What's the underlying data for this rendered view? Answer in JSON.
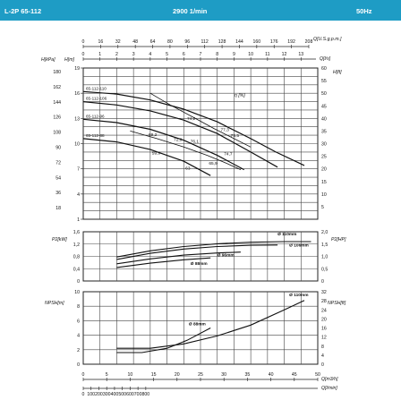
{
  "header": {
    "model": "L-2P 65-112",
    "speed": "2900 1/min",
    "frequency": "50Hz"
  },
  "chart_data": [
    {
      "type": "line",
      "id": "head",
      "top_axis": {
        "label": "Q[U.S.g.p.m.]",
        "ticks": [
          "0",
          "16",
          "32",
          "48",
          "64",
          "80",
          "96",
          "112",
          "128",
          "144",
          "160",
          "176",
          "192",
          "208"
        ]
      },
      "top_axis2": {
        "label": "Q[l/s]",
        "ticks": [
          "0",
          "1",
          "2",
          "3",
          "4",
          "5",
          "6",
          "7",
          "8",
          "9",
          "10",
          "11",
          "12",
          "13"
        ]
      },
      "left_label_1": "H[kPa]",
      "left_ticks_1": [
        "180",
        "162",
        "144",
        "126",
        "108",
        "90",
        "72",
        "54",
        "36",
        "18"
      ],
      "left_label_2": "H[m]",
      "left_ticks_2": [
        "19",
        "16",
        "13",
        "10",
        "7",
        "4",
        "1"
      ],
      "right_label": "H[ft]",
      "right_ticks": [
        "60",
        "55",
        "50",
        "45",
        "40",
        "35",
        "30",
        "25",
        "20",
        "15",
        "10",
        "5"
      ],
      "efficiency_label": "η [%]",
      "xlim": [
        0,
        14
      ],
      "ylim": [
        1,
        19
      ],
      "series": [
        {
          "name": "65-112-110",
          "x": [
            0,
            2,
            4,
            6,
            8,
            10,
            11.5,
            13.2
          ],
          "y": [
            16.2,
            15.9,
            15.2,
            14.1,
            12.6,
            10.6,
            9.0,
            7.4
          ]
        },
        {
          "name": "65-112-106",
          "x": [
            0,
            2,
            4,
            6,
            8,
            10,
            11.6
          ],
          "y": [
            15.0,
            14.6,
            13.9,
            12.8,
            11.2,
            9.0,
            7.2
          ]
        },
        {
          "name": "65-112-96",
          "x": [
            0,
            2,
            4,
            6,
            8,
            9.6
          ],
          "y": [
            12.9,
            12.5,
            11.7,
            10.4,
            8.6,
            6.9
          ]
        },
        {
          "name": "65-112-88",
          "x": [
            0,
            2,
            4,
            6,
            7.6
          ],
          "y": [
            10.6,
            10.2,
            9.3,
            7.9,
            6.2
          ]
        }
      ],
      "efficiency_curves": [
        {
          "x": [
            4.0,
            5.2,
            6.6,
            7.8,
            8.8,
            10.0
          ],
          "y": [
            16.0,
            14.6,
            13.1,
            11.8,
            10.8,
            9.6
          ]
        },
        {
          "x": [
            2.8,
            4.4,
            6.0,
            7.4,
            8.4,
            9.4
          ],
          "y": [
            11.5,
            10.6,
            9.6,
            8.6,
            7.8,
            6.9
          ]
        }
      ],
      "efficiency_labels": [
        {
          "text": "74,2",
          "x": 6.2,
          "y": 12.8
        },
        {
          "text": "77,3",
          "x": 8.2,
          "y": 11.5
        },
        {
          "text": "75,5",
          "x": 8.8,
          "y": 10.8
        },
        {
          "text": "69,2",
          "x": 3.9,
          "y": 10.9
        },
        {
          "text": "72,9",
          "x": 5.4,
          "y": 10.3
        },
        {
          "text": "76,1",
          "x": 6.4,
          "y": 10.1
        },
        {
          "text": "74,7",
          "x": 8.4,
          "y": 8.6
        },
        {
          "text": "59,9",
          "x": 4.1,
          "y": 8.7
        },
        {
          "text": "65,9",
          "x": 7.5,
          "y": 7.5
        },
        {
          "text": "63",
          "x": 6.1,
          "y": 6.9
        }
      ]
    },
    {
      "type": "line",
      "id": "power",
      "left_label": "P2[kW]",
      "left_ticks": [
        "1,6",
        "1,2",
        "0,8",
        "0,4",
        "0"
      ],
      "right_label": "P2[HP]",
      "right_ticks": [
        "2,0",
        "1,5",
        "1,0",
        "0,5",
        "0"
      ],
      "xlim": [
        0,
        14
      ],
      "ylim": [
        0,
        1.6
      ],
      "series": [
        {
          "name": "Ø 110mm",
          "x": [
            2,
            4,
            6,
            8,
            10,
            12,
            13.6
          ],
          "y": [
            0.78,
            0.98,
            1.12,
            1.21,
            1.26,
            1.28,
            1.28
          ]
        },
        {
          "name": "Ø 106mm",
          "x": [
            2,
            4,
            6,
            8,
            10,
            11.6
          ],
          "y": [
            0.7,
            0.9,
            1.04,
            1.12,
            1.16,
            1.17
          ]
        },
        {
          "name": "Ø 96mm",
          "x": [
            2,
            4,
            6,
            8,
            9.4
          ],
          "y": [
            0.56,
            0.72,
            0.84,
            0.91,
            0.94
          ]
        },
        {
          "name": "Ø 88mm",
          "x": [
            2,
            4,
            6,
            7.6
          ],
          "y": [
            0.44,
            0.58,
            0.69,
            0.75
          ]
        }
      ],
      "curve_labels": [
        {
          "text": "Ø 110mm",
          "x": 11.6,
          "y": 1.48
        },
        {
          "text": "Ø 106mm",
          "x": 12.3,
          "y": 1.12
        },
        {
          "text": "Ø 96mm",
          "x": 8.0,
          "y": 0.8
        },
        {
          "text": "Ø 88mm",
          "x": 6.4,
          "y": 0.52
        }
      ]
    },
    {
      "type": "line",
      "id": "npsh",
      "left_label": "NPSH[m]",
      "left_ticks": [
        "10",
        "8",
        "6",
        "4",
        "2",
        "0"
      ],
      "right_label": "NPSH[ft]",
      "right_ticks": [
        "32",
        "28",
        "24",
        "20",
        "16",
        "12",
        "8",
        "4",
        "0"
      ],
      "xlim": [
        0,
        14
      ],
      "ylim": [
        0,
        10
      ],
      "series": [
        {
          "name": "Ø 110mm",
          "x": [
            2,
            4,
            6,
            8,
            10,
            12,
            13.2
          ],
          "y": [
            2.2,
            2.2,
            2.8,
            3.9,
            5.4,
            7.5,
            8.8
          ]
        },
        {
          "name": "Ø 88mm",
          "x": [
            2,
            3.5,
            5,
            6.2,
            7.6
          ],
          "y": [
            1.6,
            1.6,
            2.2,
            3.3,
            5.0
          ]
        }
      ],
      "curve_labels": [
        {
          "text": "Ø 110mm",
          "x": 12.3,
          "y": 9.4
        },
        {
          "text": "Ø 88mm",
          "x": 6.3,
          "y": 5.4
        }
      ]
    }
  ],
  "bottom_axis": {
    "label1": "Q[m3/h]",
    "ticks1": [
      "0",
      "5",
      "10",
      "15",
      "20",
      "25",
      "30",
      "35",
      "40",
      "45",
      "50"
    ],
    "label2": "Q[l/min]",
    "ticks2": [
      "0",
      "100",
      "200",
      "300",
      "400",
      "500",
      "600",
      "700",
      "800"
    ]
  }
}
